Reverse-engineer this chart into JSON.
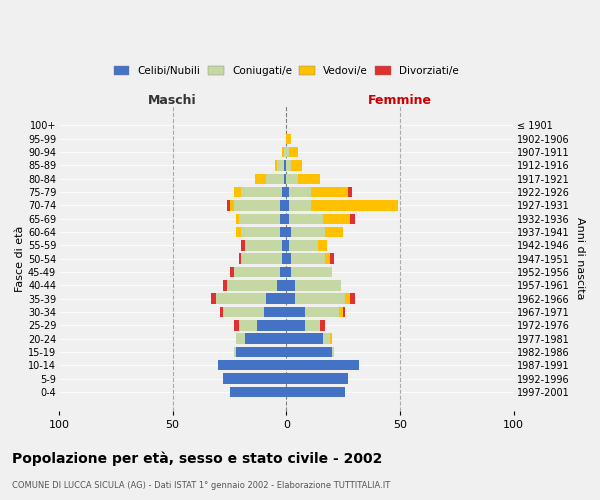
{
  "age_groups": [
    "0-4",
    "5-9",
    "10-14",
    "15-19",
    "20-24",
    "25-29",
    "30-34",
    "35-39",
    "40-44",
    "45-49",
    "50-54",
    "55-59",
    "60-64",
    "65-69",
    "70-74",
    "75-79",
    "80-84",
    "85-89",
    "90-94",
    "95-99",
    "100+"
  ],
  "birth_years": [
    "1997-2001",
    "1992-1996",
    "1987-1991",
    "1982-1986",
    "1977-1981",
    "1972-1976",
    "1967-1971",
    "1962-1966",
    "1957-1961",
    "1952-1956",
    "1947-1951",
    "1942-1946",
    "1937-1941",
    "1932-1936",
    "1927-1931",
    "1922-1926",
    "1917-1921",
    "1912-1916",
    "1907-1911",
    "1902-1906",
    "≤ 1901"
  ],
  "male": {
    "celibi": [
      25,
      28,
      30,
      22,
      18,
      13,
      10,
      9,
      4,
      3,
      2,
      2,
      3,
      3,
      3,
      2,
      1,
      1,
      0,
      0,
      0
    ],
    "coniugati": [
      0,
      0,
      0,
      1,
      4,
      8,
      18,
      22,
      22,
      20,
      18,
      16,
      17,
      18,
      20,
      18,
      8,
      3,
      1,
      0,
      0
    ],
    "vedovi": [
      0,
      0,
      0,
      0,
      0,
      0,
      0,
      0,
      0,
      0,
      0,
      0,
      2,
      1,
      2,
      3,
      5,
      1,
      1,
      0,
      0
    ],
    "divorziati": [
      0,
      0,
      0,
      0,
      0,
      2,
      1,
      2,
      2,
      2,
      1,
      2,
      0,
      0,
      1,
      0,
      0,
      0,
      0,
      0,
      0
    ]
  },
  "female": {
    "nubili": [
      26,
      27,
      32,
      20,
      16,
      8,
      8,
      4,
      4,
      2,
      2,
      1,
      2,
      1,
      1,
      1,
      0,
      0,
      0,
      0,
      0
    ],
    "coniugate": [
      0,
      0,
      0,
      1,
      3,
      7,
      15,
      22,
      20,
      18,
      15,
      13,
      15,
      15,
      10,
      10,
      5,
      2,
      1,
      0,
      0
    ],
    "vedove": [
      0,
      0,
      0,
      0,
      1,
      0,
      2,
      2,
      0,
      0,
      2,
      4,
      8,
      12,
      38,
      16,
      10,
      5,
      4,
      2,
      0
    ],
    "divorziate": [
      0,
      0,
      0,
      0,
      0,
      2,
      1,
      2,
      0,
      0,
      2,
      0,
      0,
      2,
      0,
      2,
      0,
      0,
      0,
      0,
      0
    ]
  },
  "colors": {
    "celibi_nubili": "#4472c4",
    "coniugati": "#c5d8a4",
    "vedovi": "#ffc000",
    "divorziati": "#e03030"
  },
  "title": "Popolazione per età, sesso e stato civile - 2002",
  "subtitle": "COMUNE DI LUCCA SICULA (AG) - Dati ISTAT 1° gennaio 2002 - Elaborazione TUTTITALIA.IT",
  "xlabel_left": "Maschi",
  "xlabel_right": "Femmine",
  "ylabel_left": "Fasce di età",
  "ylabel_right": "Anni di nascita",
  "xlim": 100,
  "legend_labels": [
    "Celibi/Nubili",
    "Coniugati/e",
    "Vedovi/e",
    "Divorziati/e"
  ],
  "background_color": "#f0f0f0"
}
